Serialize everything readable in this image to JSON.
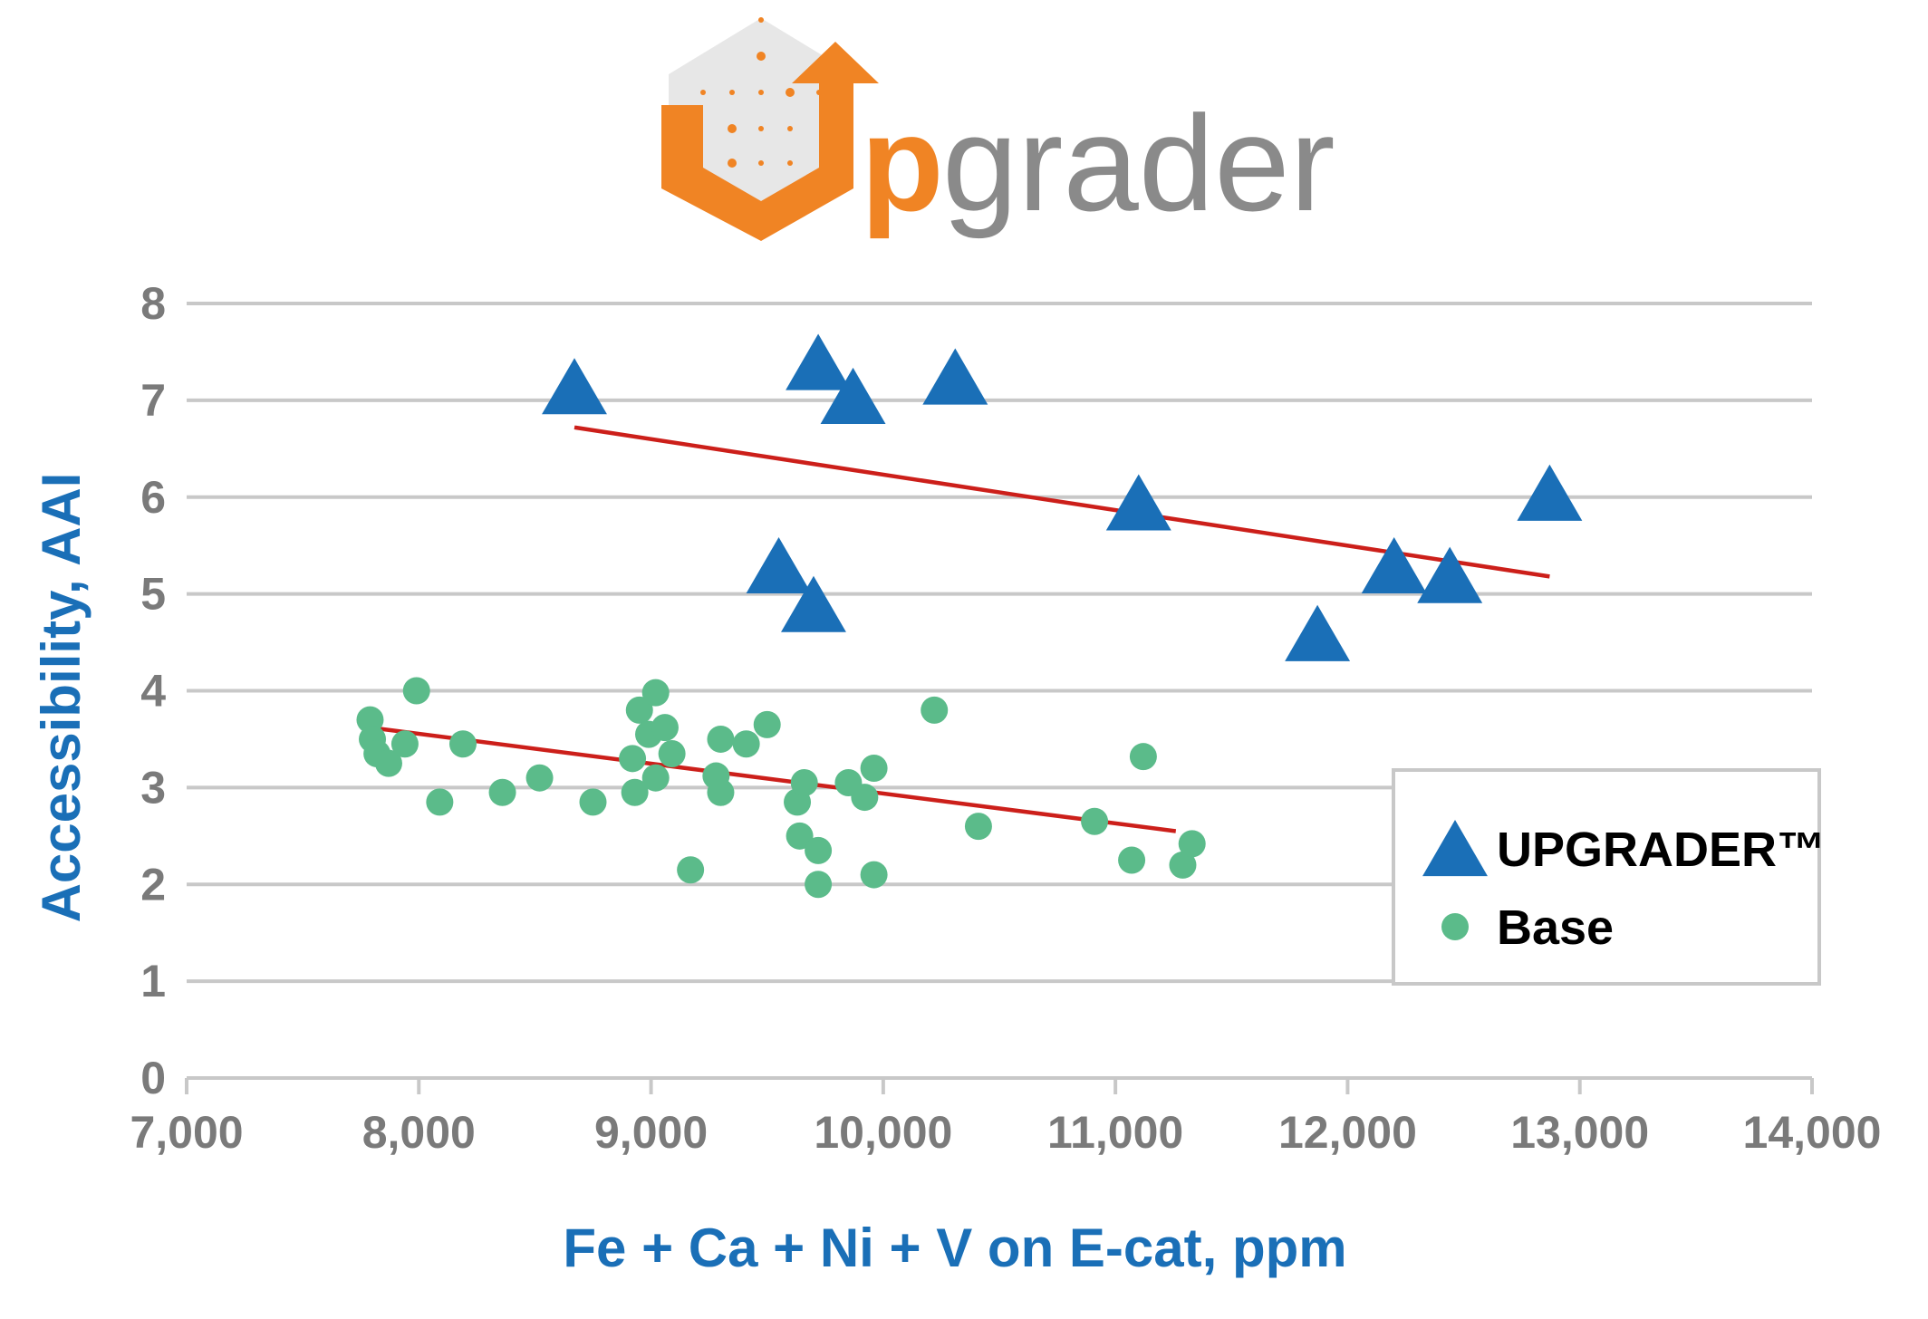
{
  "logo": {
    "lead": "p",
    "rest": "grader",
    "orange": "#f08424",
    "gray": "#8a8a8a"
  },
  "chart_data": {
    "type": "scatter",
    "xlabel": "Fe + Ca + Ni + V on E-cat, ppm",
    "ylabel": "Accessibility, AAI",
    "xlim": [
      7000,
      14000
    ],
    "ylim": [
      0,
      8
    ],
    "x_ticks": [
      "7,000",
      "8,000",
      "9,000",
      "10,000",
      "11,000",
      "12,000",
      "13,000",
      "14,000"
    ],
    "y_ticks": [
      "0",
      "1",
      "2",
      "3",
      "4",
      "5",
      "6",
      "7",
      "8"
    ],
    "grid": true,
    "legend_position": "bottom-right",
    "series": [
      {
        "name": "UPGRADER™",
        "marker": "triangle",
        "color": "#1a6fb7",
        "points": [
          [
            8670,
            7.1
          ],
          [
            9720,
            7.35
          ],
          [
            9870,
            7.0
          ],
          [
            10310,
            7.2
          ],
          [
            11100,
            5.9
          ],
          [
            9550,
            5.25
          ],
          [
            9700,
            4.85
          ],
          [
            11870,
            4.55
          ],
          [
            12200,
            5.25
          ],
          [
            12440,
            5.15
          ],
          [
            12870,
            6.0
          ]
        ],
        "trend": [
          [
            8670,
            6.72
          ],
          [
            12870,
            5.18
          ]
        ]
      },
      {
        "name": "Base",
        "marker": "circle",
        "color": "#5bbb8a",
        "points": [
          [
            7790,
            3.7
          ],
          [
            7800,
            3.5
          ],
          [
            7820,
            3.35
          ],
          [
            7870,
            3.25
          ],
          [
            7940,
            3.45
          ],
          [
            7990,
            4.0
          ],
          [
            8090,
            2.85
          ],
          [
            8190,
            3.45
          ],
          [
            8360,
            2.95
          ],
          [
            8520,
            3.1
          ],
          [
            8750,
            2.85
          ],
          [
            8920,
            3.3
          ],
          [
            8930,
            2.95
          ],
          [
            8950,
            3.8
          ],
          [
            8990,
            3.55
          ],
          [
            9020,
            3.98
          ],
          [
            9020,
            3.1
          ],
          [
            9060,
            3.62
          ],
          [
            9090,
            3.35
          ],
          [
            9170,
            2.15
          ],
          [
            9280,
            3.12
          ],
          [
            9300,
            3.5
          ],
          [
            9300,
            2.95
          ],
          [
            9410,
            3.45
          ],
          [
            9500,
            3.65
          ],
          [
            9630,
            2.85
          ],
          [
            9640,
            2.5
          ],
          [
            9660,
            3.05
          ],
          [
            9720,
            2.35
          ],
          [
            9720,
            2.0
          ],
          [
            9850,
            3.05
          ],
          [
            9920,
            2.9
          ],
          [
            9960,
            3.2
          ],
          [
            9960,
            2.1
          ],
          [
            10220,
            3.8
          ],
          [
            10410,
            2.6
          ],
          [
            10910,
            2.65
          ],
          [
            11070,
            2.25
          ],
          [
            11120,
            3.32
          ],
          [
            11290,
            2.2
          ],
          [
            11330,
            2.42
          ]
        ],
        "trend": [
          [
            7790,
            3.62
          ],
          [
            11260,
            2.55
          ]
        ]
      }
    ]
  }
}
